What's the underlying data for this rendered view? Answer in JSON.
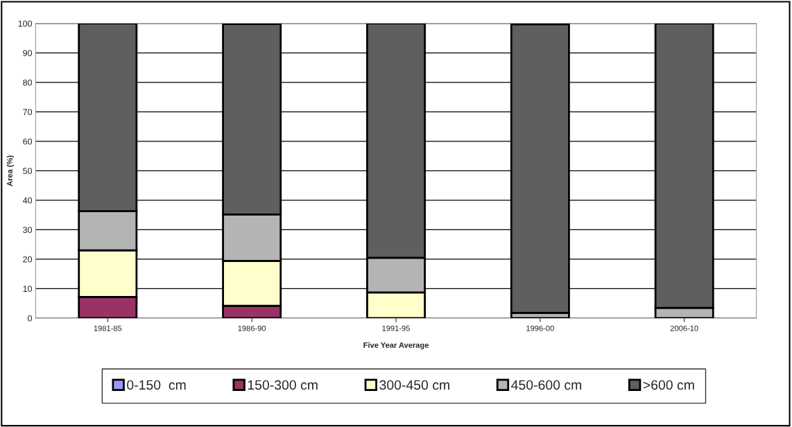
{
  "chart_data": {
    "type": "bar",
    "stacked": true,
    "xlabel": "Five Year Average",
    "ylabel": "Area (%)",
    "categories": [
      "1981-85",
      "1986-90",
      "1991-95",
      "1996-00",
      "2006-10"
    ],
    "series": [
      {
        "name": "0-150  cm",
        "color": "#9999ff",
        "values": [
          0,
          0,
          0,
          0,
          0
        ]
      },
      {
        "name": "150-300 cm",
        "color": "#993366",
        "values": [
          7.2,
          4.2,
          0,
          0,
          0
        ]
      },
      {
        "name": "300-450 cm",
        "color": "#ffffcc",
        "values": [
          15.8,
          15.2,
          8.7,
          0,
          0
        ]
      },
      {
        "name": "450-600 cm",
        "color": "#b4b4b4",
        "values": [
          13.3,
          15.8,
          11.8,
          1.8,
          3.5
        ]
      },
      {
        "name": ">600 cm",
        "color": "#5f5f5f",
        "values": [
          63.7,
          64.6,
          79.5,
          97.9,
          96.5
        ]
      }
    ],
    "ylim": [
      0,
      100
    ],
    "yticks": [
      0,
      10,
      20,
      30,
      40,
      50,
      60,
      70,
      80,
      90,
      100
    ],
    "grid": "y",
    "legend": "bottom"
  }
}
